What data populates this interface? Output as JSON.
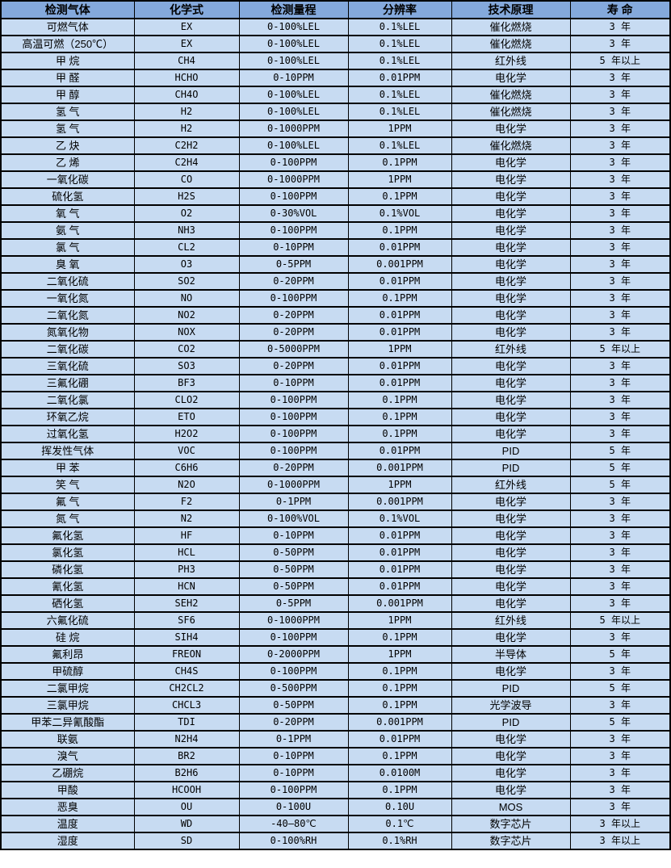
{
  "table": {
    "colors": {
      "header_bg": "#84a9dc",
      "row_bg": "#c7dbf2",
      "border": "#000000",
      "text": "#000000"
    },
    "columns": [
      "检测气体",
      "化学式",
      "检测量程",
      "分辨率",
      "技术原理",
      "寿 命"
    ],
    "rows": [
      {
        "gas": "可燃气体",
        "formula": "EX",
        "range": "0-100%LEL",
        "resolution": "0.1%LEL",
        "principle": "催化燃烧",
        "life": "3 年"
      },
      {
        "gas": "高温可燃（250℃）",
        "formula": "EX",
        "range": "0-100%LEL",
        "resolution": "0.1%LEL",
        "principle": "催化燃烧",
        "life": "3 年"
      },
      {
        "gas": "甲 烷",
        "formula": "CH4",
        "range": "0-100%LEL",
        "resolution": "0.1%LEL",
        "principle": "红外线",
        "life": "5 年以上"
      },
      {
        "gas": "甲 醛",
        "formula": "HCHO",
        "range": "0-10PPM",
        "resolution": "0.01PPM",
        "principle": "电化学",
        "life": "3 年"
      },
      {
        "gas": "甲 醇",
        "formula": "CH4O",
        "range": "0-100%LEL",
        "resolution": "0.1%LEL",
        "principle": "催化燃烧",
        "life": "3 年"
      },
      {
        "gas": "氢 气",
        "formula": "H2",
        "range": "0-100%LEL",
        "resolution": "0.1%LEL",
        "principle": "催化燃烧",
        "life": "3 年"
      },
      {
        "gas": "氢 气",
        "formula": "H2",
        "range": "0-1000PPM",
        "resolution": "1PPM",
        "principle": "电化学",
        "life": "3 年"
      },
      {
        "gas": "乙 炔",
        "formula": "C2H2",
        "range": "0-100%LEL",
        "resolution": "0.1%LEL",
        "principle": "催化燃烧",
        "life": "3 年"
      },
      {
        "gas": "乙 烯",
        "formula": "C2H4",
        "range": "0-100PPM",
        "resolution": "0.1PPM",
        "principle": "电化学",
        "life": "3 年"
      },
      {
        "gas": "一氧化碳",
        "formula": "CO",
        "range": "0-1000PPM",
        "resolution": "1PPM",
        "principle": "电化学",
        "life": "3 年"
      },
      {
        "gas": "硫化氢",
        "formula": "H2S",
        "range": "0-100PPM",
        "resolution": "0.1PPM",
        "principle": "电化学",
        "life": "3 年"
      },
      {
        "gas": "氧 气",
        "formula": "O2",
        "range": "0-30%VOL",
        "resolution": "0.1%VOL",
        "principle": "电化学",
        "life": "3 年"
      },
      {
        "gas": "氨 气",
        "formula": "NH3",
        "range": "0-100PPM",
        "resolution": "0.1PPM",
        "principle": "电化学",
        "life": "3 年"
      },
      {
        "gas": "氯 气",
        "formula": "CL2",
        "range": "0-10PPM",
        "resolution": "0.01PPM",
        "principle": "电化学",
        "life": "3 年"
      },
      {
        "gas": "臭 氧",
        "formula": "O3",
        "range": "0-5PPM",
        "resolution": "0.001PPM",
        "principle": "电化学",
        "life": "3 年"
      },
      {
        "gas": "二氧化硫",
        "formula": "SO2",
        "range": "0-20PPM",
        "resolution": "0.01PPM",
        "principle": "电化学",
        "life": "3 年"
      },
      {
        "gas": "一氧化氮",
        "formula": "NO",
        "range": "0-100PPM",
        "resolution": "0.1PPM",
        "principle": "电化学",
        "life": "3 年"
      },
      {
        "gas": "二氧化氮",
        "formula": "NO2",
        "range": "0-20PPM",
        "resolution": "0.01PPM",
        "principle": "电化学",
        "life": "3 年"
      },
      {
        "gas": "氮氧化物",
        "formula": "NOX",
        "range": "0-20PPM",
        "resolution": "0.01PPM",
        "principle": "电化学",
        "life": "3 年"
      },
      {
        "gas": "二氧化碳",
        "formula": "CO2",
        "range": "0-5000PPM",
        "resolution": "1PPM",
        "principle": "红外线",
        "life": "5 年以上"
      },
      {
        "gas": "三氧化硫",
        "formula": "SO3",
        "range": "0-20PPM",
        "resolution": "0.01PPM",
        "principle": "电化学",
        "life": "3 年"
      },
      {
        "gas": "三氟化硼",
        "formula": "BF3",
        "range": "0-10PPM",
        "resolution": "0.01PPM",
        "principle": "电化学",
        "life": "3 年"
      },
      {
        "gas": "二氧化氯",
        "formula": "CLO2",
        "range": "0-100PPM",
        "resolution": "0.1PPM",
        "principle": "电化学",
        "life": "3 年"
      },
      {
        "gas": "环氧乙烷",
        "formula": "ETO",
        "range": "0-100PPM",
        "resolution": "0.1PPM",
        "principle": "电化学",
        "life": "3 年"
      },
      {
        "gas": "过氧化氢",
        "formula": "H2O2",
        "range": "0-100PPM",
        "resolution": "0.1PPM",
        "principle": "电化学",
        "life": "3 年"
      },
      {
        "gas": "挥发性气体",
        "formula": "VOC",
        "range": "0-100PPM",
        "resolution": "0.01PPM",
        "principle": "PID",
        "life": "5 年"
      },
      {
        "gas": "甲 苯",
        "formula": "C6H6",
        "range": "0-20PPM",
        "resolution": "0.001PPM",
        "principle": "PID",
        "life": "5 年"
      },
      {
        "gas": "笑 气",
        "formula": "N2O",
        "range": "0-1000PPM",
        "resolution": "1PPM",
        "principle": "红外线",
        "life": "5 年"
      },
      {
        "gas": "氟 气",
        "formula": "F2",
        "range": "0-1PPM",
        "resolution": "0.001PPM",
        "principle": "电化学",
        "life": "3 年"
      },
      {
        "gas": "氮 气",
        "formula": "N2",
        "range": "0-100%VOL",
        "resolution": "0.1%VOL",
        "principle": "电化学",
        "life": "3 年"
      },
      {
        "gas": "氟化氢",
        "formula": "HF",
        "range": "0-10PPM",
        "resolution": "0.01PPM",
        "principle": "电化学",
        "life": "3 年"
      },
      {
        "gas": "氯化氢",
        "formula": "HCL",
        "range": "0-50PPM",
        "resolution": "0.01PPM",
        "principle": "电化学",
        "life": "3 年"
      },
      {
        "gas": "磷化氢",
        "formula": "PH3",
        "range": "0-50PPM",
        "resolution": "0.01PPM",
        "principle": "电化学",
        "life": "3 年"
      },
      {
        "gas": "氰化氢",
        "formula": "HCN",
        "range": "0-50PPM",
        "resolution": "0.01PPM",
        "principle": "电化学",
        "life": "3 年"
      },
      {
        "gas": "硒化氢",
        "formula": "SEH2",
        "range": "0-5PPM",
        "resolution": "0.001PPM",
        "principle": "电化学",
        "life": "3 年"
      },
      {
        "gas": "六氟化硫",
        "formula": "SF6",
        "range": "0-1000PPM",
        "resolution": "1PPM",
        "principle": "红外线",
        "life": "5 年以上"
      },
      {
        "gas": "硅 烷",
        "formula": "SIH4",
        "range": "0-100PPM",
        "resolution": "0.1PPM",
        "principle": "电化学",
        "life": "3 年"
      },
      {
        "gas": "氟利昂",
        "formula": "FREON",
        "range": "0-2000PPM",
        "resolution": "1PPM",
        "principle": "半导体",
        "life": "5 年"
      },
      {
        "gas": "甲硫醇",
        "formula": "CH4S",
        "range": "0-100PPM",
        "resolution": "0.1PPM",
        "principle": "电化学",
        "life": "3 年"
      },
      {
        "gas": "二氯甲烷",
        "formula": "CH2CL2",
        "range": "0-500PPM",
        "resolution": "0.1PPM",
        "principle": "PID",
        "life": "5 年"
      },
      {
        "gas": "三氯甲烷",
        "formula": "CHCL3",
        "range": "0-50PPM",
        "resolution": "0.1PPM",
        "principle": "光学波导",
        "life": "3 年"
      },
      {
        "gas": "甲苯二异氰酸酯",
        "formula": "TDI",
        "range": "0-20PPM",
        "resolution": "0.001PPM",
        "principle": "PID",
        "life": "5 年"
      },
      {
        "gas": "联氨",
        "formula": "N2H4",
        "range": "0-1PPM",
        "resolution": "0.01PPM",
        "principle": "电化学",
        "life": "3 年"
      },
      {
        "gas": "溴气",
        "formula": "BR2",
        "range": "0-10PPM",
        "resolution": "0.1PPM",
        "principle": "电化学",
        "life": "3 年"
      },
      {
        "gas": "乙硼烷",
        "formula": "B2H6",
        "range": "0-10PPM",
        "resolution": "0.0100M",
        "principle": "电化学",
        "life": "3 年"
      },
      {
        "gas": "甲酸",
        "formula": "HCOOH",
        "range": "0-100PPM",
        "resolution": "0.1PPM",
        "principle": "电化学",
        "life": "3 年"
      },
      {
        "gas": "恶臭",
        "formula": "OU",
        "range": "0-100U",
        "resolution": "0.10U",
        "principle": "MOS",
        "life": "3 年"
      },
      {
        "gas": "温度",
        "formula": "WD",
        "range": "-40—80℃",
        "resolution": "0.1℃",
        "principle": "数字芯片",
        "life": "3 年以上"
      },
      {
        "gas": "湿度",
        "formula": "SD",
        "range": "0-100%RH",
        "resolution": "0.1%RH",
        "principle": "数字芯片",
        "life": "3 年以上"
      }
    ]
  }
}
